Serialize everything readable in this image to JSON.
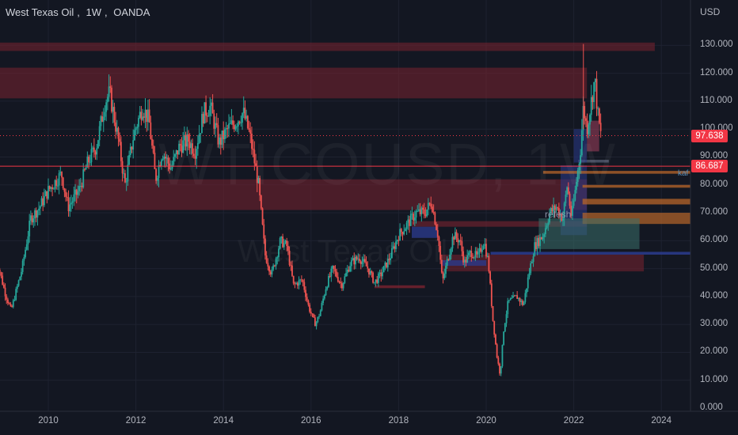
{
  "header": {
    "symbol": "West Texas Oil",
    "interval": "1W",
    "source": "OANDA"
  },
  "watermark": {
    "ticker": "WTICOUSD, 1W",
    "name": "West Texas Oil"
  },
  "colors": {
    "background": "#131722",
    "up": "#26a69a",
    "down": "#ef5350",
    "zone_red": "#7a2330",
    "zone_blue": "#2a3a8a",
    "zone_orange": "#b8662a",
    "zone_teal": "#3a6f6a"
  },
  "chart_data": {
    "type": "candlestick",
    "currency": "USD",
    "y_ticks": [
      "130.000",
      "120.000",
      "110.000",
      "100.000",
      "90.000",
      "80.000",
      "70.000",
      "60.000",
      "50.000",
      "40.000",
      "30.000",
      "20.000",
      "10.000",
      "0.000"
    ],
    "ylim": [
      0,
      144
    ],
    "x_ticks": [
      "2010",
      "2012",
      "2014",
      "2016",
      "2018",
      "2020",
      "2022",
      "2024"
    ],
    "xlim": [
      2008.8,
      2025.4
    ],
    "grid": true,
    "last_price": "97.638",
    "horizontal_level": "86.687",
    "annotations": [
      "refesh",
      "kaf"
    ],
    "price_path": [
      [
        2008.8,
        55
      ],
      [
        2009.0,
        42
      ],
      [
        2009.15,
        35
      ],
      [
        2009.4,
        50
      ],
      [
        2009.6,
        68
      ],
      [
        2009.8,
        72
      ],
      [
        2010.0,
        78
      ],
      [
        2010.3,
        84
      ],
      [
        2010.45,
        72
      ],
      [
        2010.7,
        78
      ],
      [
        2010.9,
        88
      ],
      [
        2011.1,
        94
      ],
      [
        2011.3,
        110
      ],
      [
        2011.4,
        113
      ],
      [
        2011.6,
        96
      ],
      [
        2011.75,
        80
      ],
      [
        2011.95,
        98
      ],
      [
        2012.15,
        108
      ],
      [
        2012.3,
        103
      ],
      [
        2012.45,
        82
      ],
      [
        2012.6,
        92
      ],
      [
        2012.8,
        86
      ],
      [
        2013.0,
        94
      ],
      [
        2013.2,
        96
      ],
      [
        2013.35,
        92
      ],
      [
        2013.55,
        106
      ],
      [
        2013.7,
        108
      ],
      [
        2013.9,
        95
      ],
      [
        2014.1,
        100
      ],
      [
        2014.3,
        103
      ],
      [
        2014.45,
        106
      ],
      [
        2014.6,
        98
      ],
      [
        2014.8,
        80
      ],
      [
        2014.95,
        55
      ],
      [
        2015.1,
        48
      ],
      [
        2015.3,
        60
      ],
      [
        2015.45,
        58
      ],
      [
        2015.6,
        44
      ],
      [
        2015.8,
        46
      ],
      [
        2015.95,
        36
      ],
      [
        2016.1,
        30
      ],
      [
        2016.2,
        34
      ],
      [
        2016.35,
        44
      ],
      [
        2016.5,
        50
      ],
      [
        2016.7,
        44
      ],
      [
        2016.9,
        52
      ],
      [
        2017.1,
        54
      ],
      [
        2017.3,
        50
      ],
      [
        2017.45,
        45
      ],
      [
        2017.6,
        48
      ],
      [
        2017.8,
        54
      ],
      [
        2018.0,
        62
      ],
      [
        2018.2,
        66
      ],
      [
        2018.4,
        70
      ],
      [
        2018.6,
        70
      ],
      [
        2018.75,
        74
      ],
      [
        2018.9,
        62
      ],
      [
        2019.0,
        45
      ],
      [
        2019.1,
        52
      ],
      [
        2019.25,
        62
      ],
      [
        2019.4,
        60
      ],
      [
        2019.5,
        52
      ],
      [
        2019.65,
        56
      ],
      [
        2019.8,
        54
      ],
      [
        2019.95,
        60
      ],
      [
        2020.05,
        52
      ],
      [
        2020.15,
        32
      ],
      [
        2020.25,
        18
      ],
      [
        2020.32,
        12
      ],
      [
        2020.4,
        28
      ],
      [
        2020.5,
        38
      ],
      [
        2020.7,
        40
      ],
      [
        2020.85,
        37
      ],
      [
        2020.95,
        46
      ],
      [
        2021.1,
        58
      ],
      [
        2021.3,
        62
      ],
      [
        2021.45,
        70
      ],
      [
        2021.6,
        72
      ],
      [
        2021.75,
        68
      ],
      [
        2021.85,
        80
      ],
      [
        2021.95,
        68
      ],
      [
        2022.05,
        80
      ],
      [
        2022.15,
        92
      ],
      [
        2022.22,
        108
      ],
      [
        2022.3,
        100
      ],
      [
        2022.4,
        110
      ],
      [
        2022.48,
        118
      ],
      [
        2022.55,
        105
      ],
      [
        2022.62,
        97.6
      ]
    ]
  }
}
